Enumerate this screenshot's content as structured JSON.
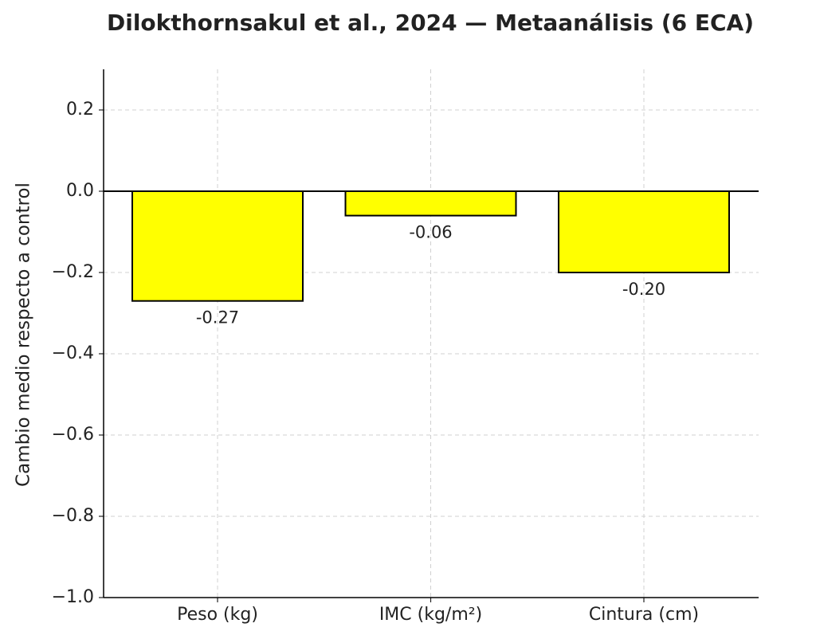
{
  "chart_data": {
    "type": "bar",
    "title": "Dilokthornsakul et al., 2024 — Metaanálisis (6 ECA)",
    "y_label": "Cambio medio respecto a control",
    "categories": [
      "Peso (kg)",
      "IMC (kg/m²)",
      "Cintura (cm)"
    ],
    "values": [
      -0.27,
      -0.06,
      -0.2
    ],
    "value_labels": [
      "-0.27",
      "-0.06",
      "-0.20"
    ],
    "color": "#ffff00",
    "ylim": [
      -1.0,
      0.3
    ],
    "yticks": [
      {
        "value": -1.0,
        "label": "−1.0"
      },
      {
        "value": -0.8,
        "label": "−0.8"
      },
      {
        "value": -0.6,
        "label": "−0.6"
      },
      {
        "value": -0.4,
        "label": "−0.4"
      },
      {
        "value": -0.2,
        "label": "−0.2"
      },
      {
        "value": 0.0,
        "label": "0.0"
      },
      0.2
    ],
    "grid": true
  }
}
